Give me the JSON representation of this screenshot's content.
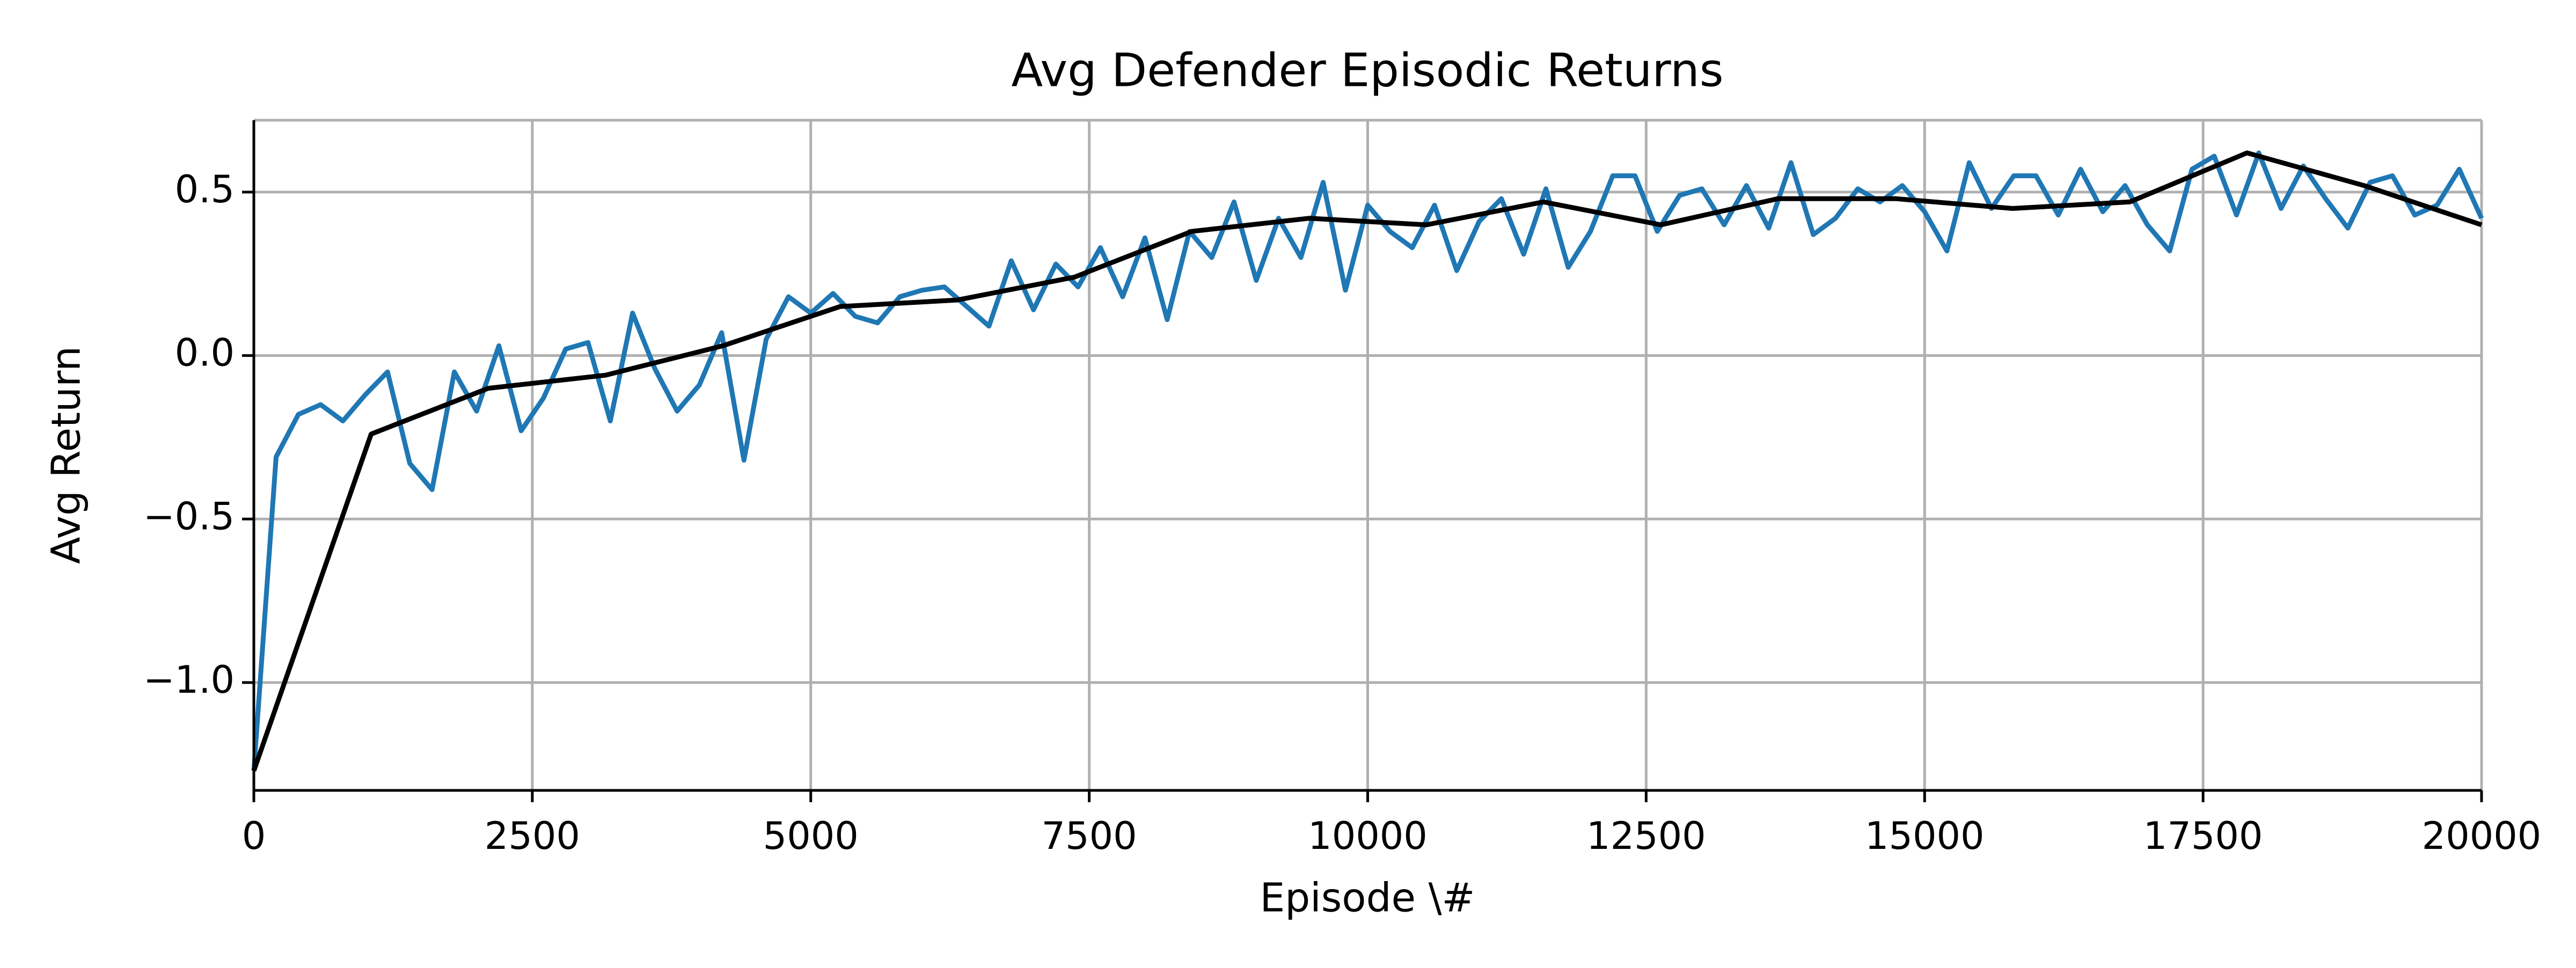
{
  "chart_data": {
    "type": "line",
    "title": "Avg Defender Episodic Returns",
    "xlabel": "Episode \\#",
    "ylabel": "Avg Return",
    "xlim": [
      0,
      20000
    ],
    "xticks": [
      0,
      2500,
      5000,
      7500,
      10000,
      12500,
      15000,
      17500,
      20000
    ],
    "ylim": [
      -1.33,
      0.72
    ],
    "yticks": [
      {
        "value": -1.0,
        "label": "−1.0"
      },
      {
        "value": -0.5,
        "label": "−0.5"
      },
      {
        "value": 0.0,
        "label": "0.0"
      },
      0.5
    ],
    "grid": true,
    "series": [
      {
        "color": "#1f77b4",
        "x": [
          0,
          200,
          400,
          600,
          800,
          1000,
          1200,
          1400,
          1600,
          1800,
          2000,
          2200,
          2400,
          2600,
          2800,
          3000,
          3200,
          3400,
          3600,
          3800,
          4000,
          4200,
          4400,
          4600,
          4800,
          5000,
          5200,
          5400,
          5600,
          5800,
          6000,
          6200,
          6400,
          6600,
          6800,
          7000,
          7200,
          7400,
          7600,
          7800,
          8000,
          8200,
          8400,
          8600,
          8800,
          9000,
          9200,
          9400,
          9600,
          9800,
          10000,
          10200,
          10400,
          10600,
          10800,
          11000,
          11200,
          11400,
          11600,
          11800,
          12000,
          12200,
          12400,
          12600,
          12800,
          13000,
          13200,
          13400,
          13600,
          13800,
          14000,
          14200,
          14400,
          14600,
          14800,
          15000,
          15200,
          15400,
          15600,
          15800,
          16000,
          16200,
          16400,
          16600,
          16800,
          17000,
          17200,
          17400,
          17600,
          17800,
          18000,
          18200,
          18400,
          18600,
          18800,
          19000,
          19200,
          19400,
          19600,
          19800,
          20000
        ],
        "values": [
          -1.27,
          -0.31,
          -0.18,
          -0.15,
          -0.2,
          -0.12,
          -0.05,
          -0.33,
          -0.41,
          -0.05,
          -0.17,
          0.03,
          -0.23,
          -0.13,
          0.02,
          0.04,
          -0.2,
          0.13,
          -0.04,
          -0.17,
          -0.09,
          0.07,
          -0.32,
          0.05,
          0.18,
          0.13,
          0.19,
          0.12,
          0.1,
          0.18,
          0.2,
          0.21,
          0.15,
          0.09,
          0.29,
          0.14,
          0.28,
          0.21,
          0.33,
          0.18,
          0.36,
          0.11,
          0.38,
          0.3,
          0.47,
          0.23,
          0.42,
          0.3,
          0.53,
          0.2,
          0.46,
          0.38,
          0.33,
          0.46,
          0.26,
          0.41,
          0.48,
          0.31,
          0.51,
          0.27,
          0.38,
          0.55,
          0.55,
          0.38,
          0.49,
          0.51,
          0.4,
          0.52,
          0.39,
          0.59,
          0.37,
          0.42,
          0.51,
          0.47,
          0.52,
          0.44,
          0.32,
          0.59,
          0.45,
          0.55,
          0.55,
          0.43,
          0.57,
          0.44,
          0.52,
          0.4,
          0.32,
          0.57,
          0.61,
          0.43,
          0.62,
          0.45,
          0.58,
          0.48,
          0.39,
          0.53,
          0.55,
          0.43,
          0.46,
          0.57,
          0.42
        ]
      },
      {
        "color": "#000000",
        "x": [
          0,
          1053,
          2105,
          3158,
          4211,
          5263,
          6316,
          7368,
          8421,
          9474,
          10526,
          11579,
          12632,
          13684,
          14737,
          15789,
          16842,
          17895,
          18947,
          20000
        ],
        "values": [
          -1.27,
          -0.24,
          -0.1,
          -0.06,
          0.03,
          0.15,
          0.17,
          0.24,
          0.38,
          0.42,
          0.4,
          0.47,
          0.4,
          0.48,
          0.48,
          0.45,
          0.47,
          0.62,
          0.52,
          0.4
        ]
      }
    ]
  }
}
